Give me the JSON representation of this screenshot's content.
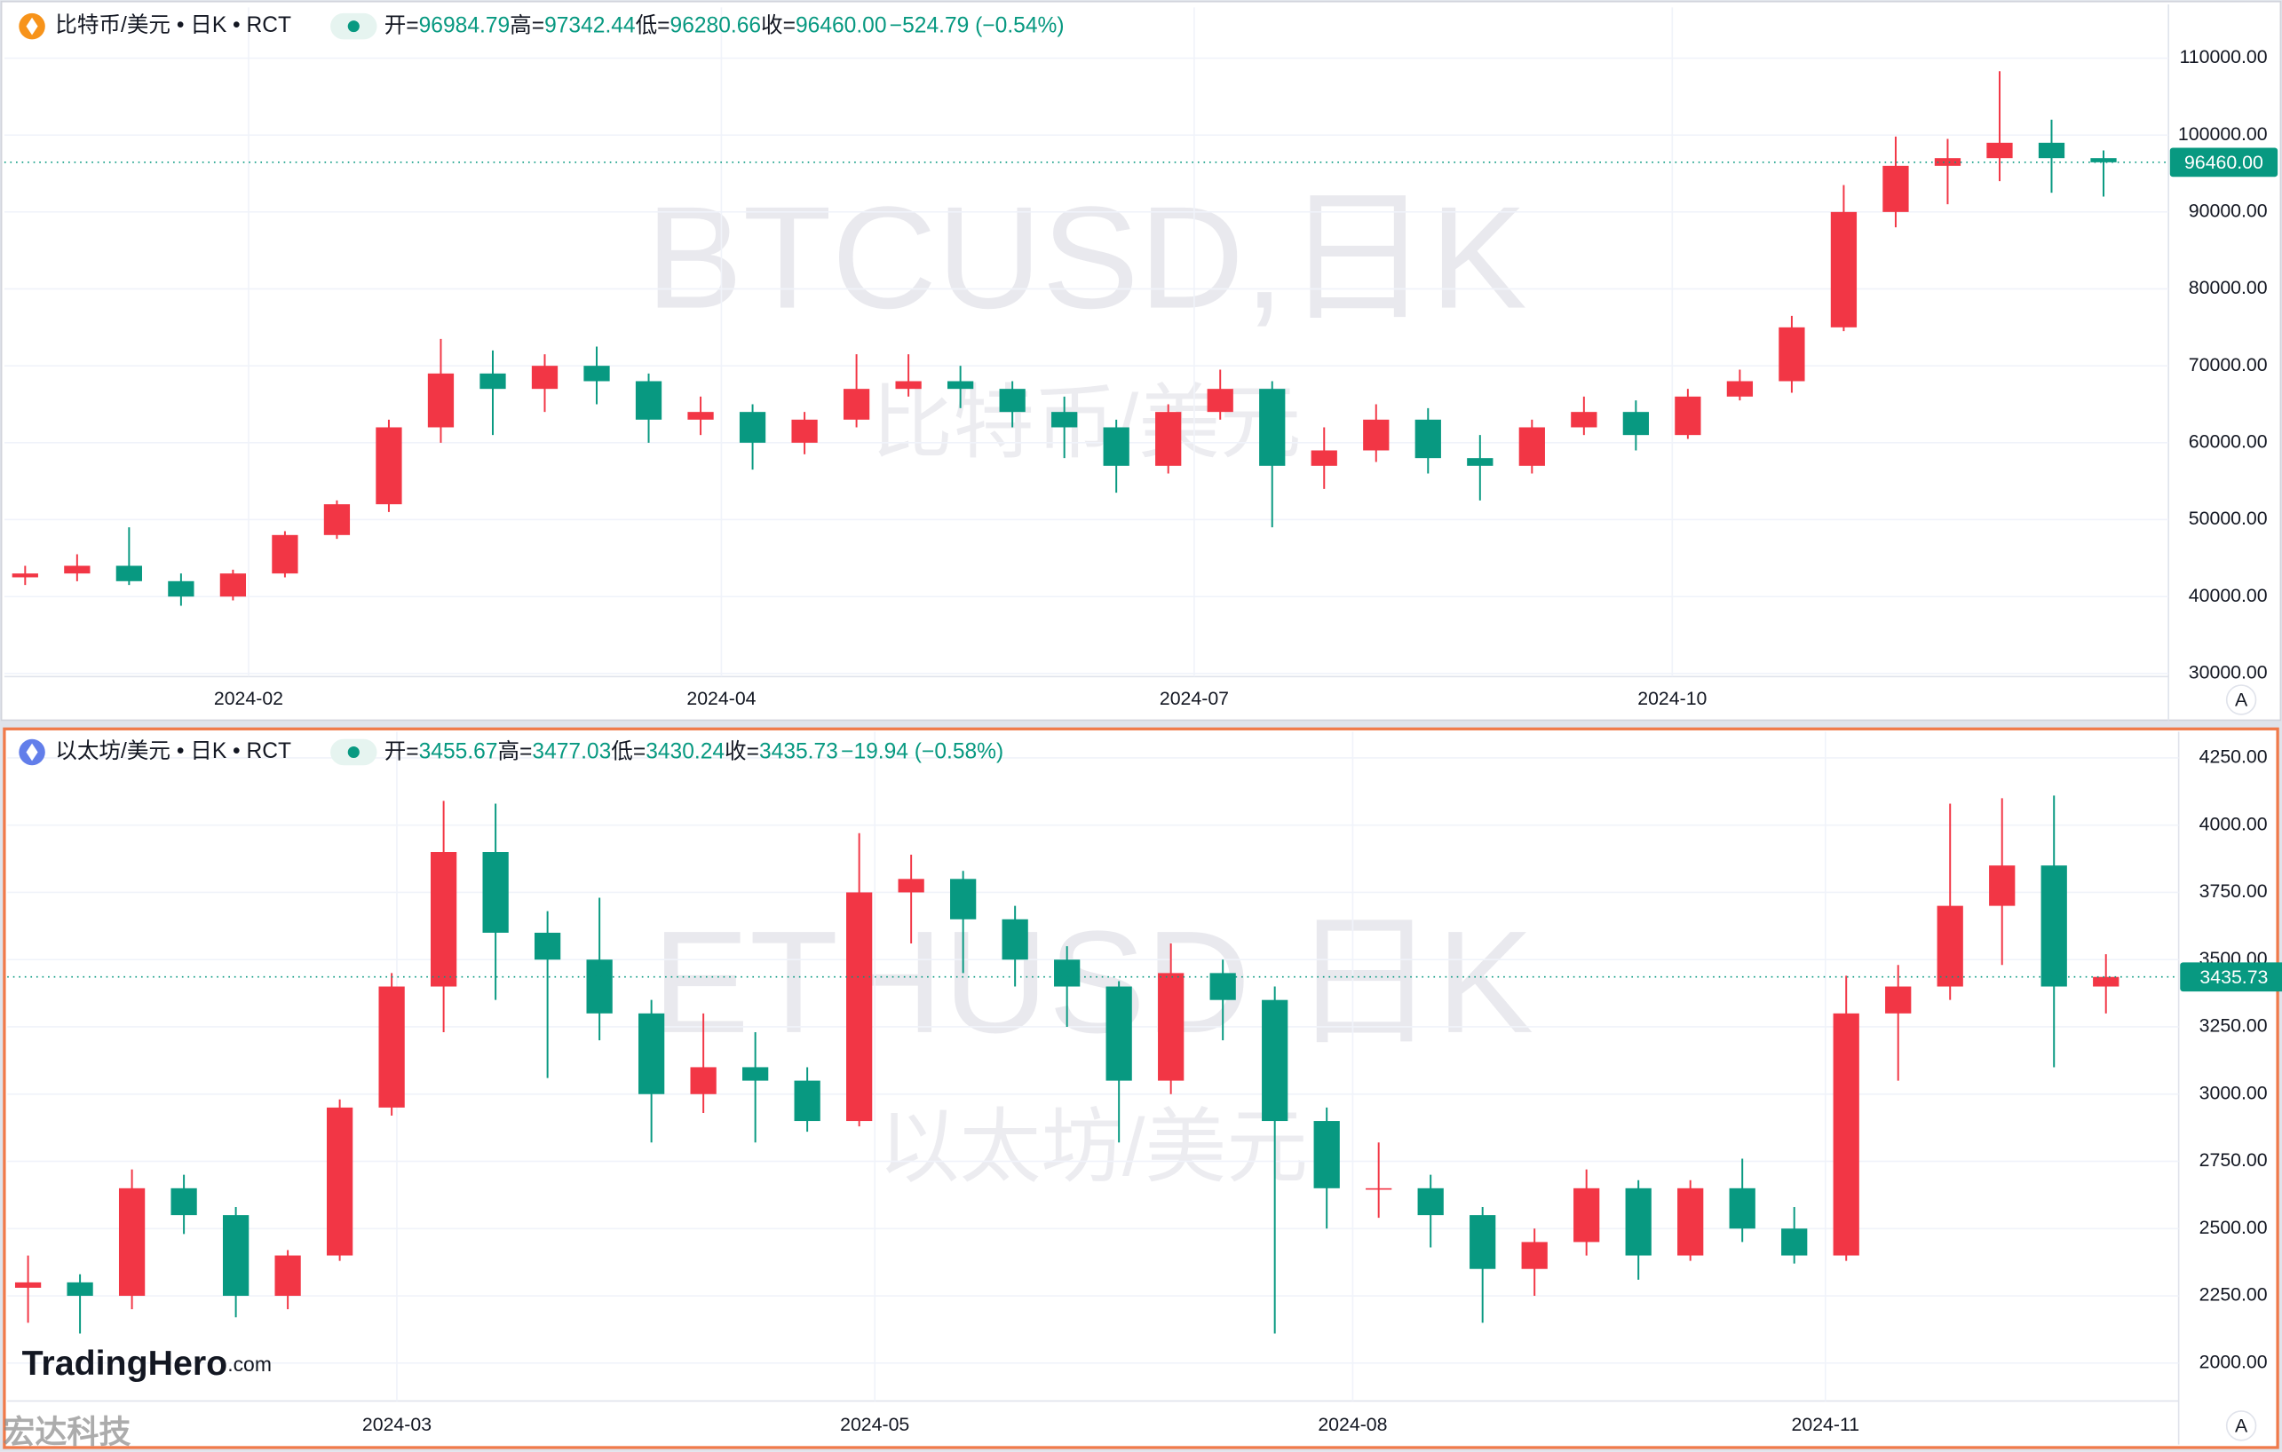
{
  "brand": "TradingHero",
  "brand_suffix": ".com",
  "corner_watermark": "宏达科技",
  "chart_data": [
    {
      "type": "candlestick",
      "title": "比特币/美元 • 日K • RCT",
      "header": [
        {
          "label": "开=",
          "value": "96984.79"
        },
        {
          "label": "高=",
          "value": "97342.44"
        },
        {
          "label": "低=",
          "value": "96280.66"
        },
        {
          "label": "收=",
          "value": "96460.00"
        }
      ],
      "change": "−524.79 (−0.54%)",
      "watermark": "BTCUSD,日K",
      "watermark_sub": "比特币/美元",
      "scale_button": "A",
      "up_color": "#f23645",
      "down_color": "#089981",
      "last_price": {
        "value": 96460,
        "label": "96460.00"
      },
      "xlim": [
        0,
        416.5
      ],
      "xticks": [
        {
          "value": 47,
          "label": "2024-02"
        },
        {
          "value": 138,
          "label": "2024-04"
        },
        {
          "value": 229,
          "label": "2024-07"
        },
        {
          "value": 321,
          "label": "2024-10"
        }
      ],
      "ylim": [
        29600,
        116600
      ],
      "yticks": [
        {
          "value": 30000,
          "label": "30000.00"
        },
        {
          "value": 40000,
          "label": "40000.00"
        },
        {
          "value": 50000,
          "label": "50000.00"
        },
        {
          "value": 60000,
          "label": "60000.00"
        },
        {
          "value": 70000,
          "label": "70000.00"
        },
        {
          "value": 80000,
          "label": "80000.00"
        },
        {
          "value": 90000,
          "label": "90000.00"
        },
        {
          "value": 100000,
          "label": "100000.00"
        },
        {
          "value": 110000,
          "label": "110000.00"
        }
      ],
      "grid": true,
      "x": [
        4,
        14,
        24,
        34,
        44,
        54,
        64,
        74,
        84,
        94,
        104,
        114,
        124,
        134,
        144,
        154,
        164,
        174,
        184,
        194,
        204,
        214,
        224,
        234,
        244,
        254,
        264,
        274,
        284,
        294,
        304,
        314,
        324,
        334,
        344,
        354,
        364,
        374,
        384,
        394,
        404
      ],
      "open": [
        42500,
        43000,
        44000,
        42000,
        40000,
        43000,
        48000,
        52000,
        62000,
        69000,
        67000,
        70000,
        68000,
        63000,
        64000,
        60000,
        63000,
        67000,
        68000,
        67000,
        64000,
        62000,
        57000,
        64000,
        67000,
        57000,
        59000,
        63000,
        58000,
        57000,
        62000,
        64000,
        61000,
        66000,
        68000,
        75000,
        90000,
        96000,
        97000,
        99000,
        97000
      ],
      "high": [
        44000,
        45500,
        49000,
        43000,
        43500,
        48500,
        52500,
        63000,
        73500,
        72000,
        71500,
        72500,
        69000,
        66000,
        65000,
        64000,
        71500,
        71500,
        70000,
        68000,
        66000,
        63000,
        65000,
        69500,
        68000,
        62000,
        65000,
        64500,
        61000,
        63000,
        66000,
        65500,
        67000,
        69500,
        76500,
        93500,
        99800,
        99500,
        108300,
        102000,
        98000
      ],
      "low": [
        41500,
        42000,
        41500,
        38800,
        39500,
        42500,
        47500,
        51000,
        60000,
        61000,
        64000,
        65000,
        60000,
        61000,
        56500,
        58500,
        62000,
        66000,
        64500,
        62000,
        58000,
        53500,
        56000,
        63000,
        49000,
        54000,
        57500,
        56000,
        52500,
        56000,
        61000,
        59000,
        60500,
        65500,
        66500,
        74500,
        88000,
        91000,
        94000,
        92500,
        92000
      ],
      "close": [
        43000,
        44000,
        42000,
        40000,
        43000,
        48000,
        52000,
        62000,
        69000,
        67000,
        70000,
        68000,
        63000,
        64000,
        60000,
        63000,
        67000,
        68000,
        67000,
        64000,
        62000,
        57000,
        64000,
        67000,
        57000,
        59000,
        63000,
        58000,
        57000,
        62000,
        64000,
        61000,
        66000,
        68000,
        75000,
        90000,
        96000,
        97000,
        99000,
        97000,
        96460
      ]
    },
    {
      "type": "candlestick",
      "title": "以太坊/美元 • 日K • RCT",
      "header": [
        {
          "label": "开=",
          "value": "3455.67"
        },
        {
          "label": "高=",
          "value": "3477.03"
        },
        {
          "label": "低=",
          "value": "3430.24"
        },
        {
          "label": "收=",
          "value": "3435.73"
        }
      ],
      "change": "−19.94 (−0.58%)",
      "watermark": "ETHUSD,日K",
      "watermark_sub": "以太坊/美元",
      "scale_button": "A",
      "up_color": "#f23645",
      "down_color": "#089981",
      "last_price": 3435.73,
      "xlim": [
        0,
        418
      ],
      "xticks": [
        {
          "value": 75,
          "label": "2024-03"
        },
        {
          "value": 167,
          "label": "2024-05"
        },
        {
          "value": 259,
          "label": "2024-08"
        },
        {
          "value": 350,
          "label": "2024-11"
        }
      ],
      "ylim": [
        1859,
        4347
      ],
      "yticks": [
        {
          "value": 2000,
          "label": "2000.00"
        },
        {
          "value": 2250,
          "label": "2250.00"
        },
        {
          "value": 2500,
          "label": "2500.00"
        },
        {
          "value": 2750,
          "label": "2750.00"
        },
        {
          "value": 3000,
          "label": "3000.00"
        },
        {
          "value": 3250,
          "label": "3250.00"
        },
        {
          "value": 3500,
          "label": "3500.00"
        },
        {
          "value": 3750,
          "label": "3750.00"
        },
        {
          "value": 4000,
          "label": "4000.00"
        },
        {
          "value": 4250,
          "label": "4250.00"
        }
      ],
      "grid": true,
      "x": [
        4,
        14,
        24,
        34,
        44,
        54,
        64,
        74,
        84,
        94,
        104,
        114,
        124,
        134,
        144,
        154,
        164,
        174,
        184,
        194,
        204,
        214,
        224,
        234,
        244,
        254,
        264,
        274,
        284,
        294,
        304,
        314,
        324,
        334,
        344,
        354,
        364,
        374,
        384,
        394,
        404
      ],
      "open": [
        2280,
        2300,
        2250,
        2650,
        2550,
        2250,
        2400,
        2950,
        3400,
        3900,
        3600,
        3500,
        3300,
        3000,
        3100,
        3050,
        2900,
        3750,
        3800,
        3650,
        3500,
        3400,
        3050,
        3450,
        3350,
        2900,
        2650,
        2650,
        2550,
        2350,
        2450,
        2650,
        2400,
        2650,
        2500,
        2400,
        3300,
        3400,
        3700,
        3850,
        3400
      ],
      "high": [
        2400,
        2330,
        2720,
        2700,
        2580,
        2420,
        2980,
        3450,
        4090,
        4080,
        3680,
        3730,
        3350,
        3300,
        3230,
        3100,
        3970,
        3890,
        3830,
        3700,
        3550,
        3420,
        3560,
        3500,
        3400,
        2950,
        2820,
        2700,
        2580,
        2500,
        2720,
        2680,
        2680,
        2760,
        2580,
        3440,
        3480,
        4080,
        4100,
        4110,
        3520
      ],
      "low": [
        2150,
        2110,
        2200,
        2480,
        2170,
        2200,
        2380,
        2920,
        3230,
        3350,
        3060,
        3200,
        2820,
        2930,
        2820,
        2860,
        2880,
        3560,
        3450,
        3400,
        3250,
        2820,
        3000,
        3200,
        2110,
        2500,
        2540,
        2430,
        2150,
        2250,
        2400,
        2310,
        2380,
        2450,
        2370,
        2380,
        3050,
        3350,
        3480,
        3100,
        3300
      ],
      "close": [
        2300,
        2250,
        2650,
        2550,
        2250,
        2400,
        2950,
        3400,
        3900,
        3600,
        3500,
        3300,
        3000,
        3100,
        3050,
        2900,
        3750,
        3800,
        3650,
        3500,
        3400,
        3050,
        3450,
        3350,
        2900,
        2650,
        2650,
        2550,
        2350,
        2450,
        2650,
        2400,
        2650,
        2500,
        2400,
        3300,
        3400,
        3700,
        3850,
        3400,
        3435.73
      ]
    }
  ]
}
